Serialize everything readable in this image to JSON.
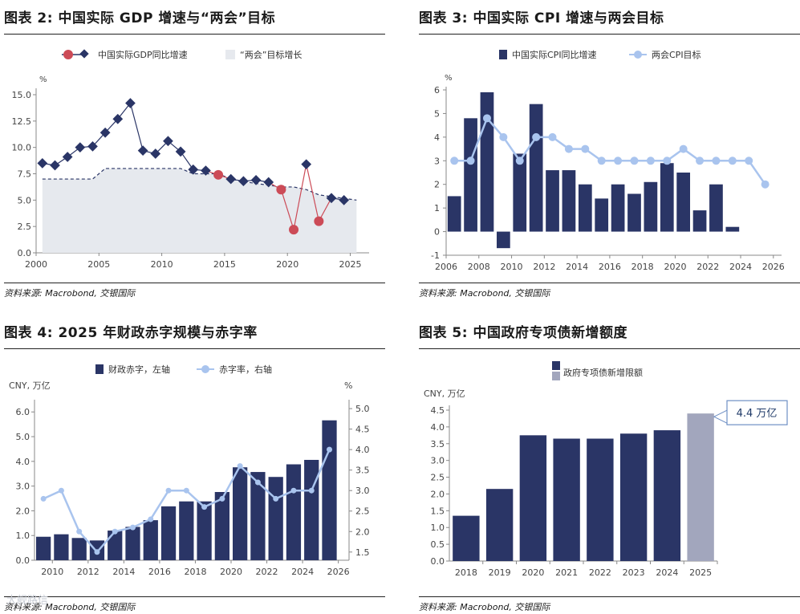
{
  "colors": {
    "navy": "#2a3566",
    "light_blue": "#a9c4ee",
    "red": "#cc4b57",
    "fill_gray": "#e6e9ee",
    "dash": "#2a3566",
    "gray_bar": "#a2a6bd",
    "callout_border": "#6e8fc4"
  },
  "watermark": "大舰路信",
  "chart_data": [
    {
      "type": "line",
      "title": "图表 2: 中国实际 GDP 增速与“两会”目标",
      "source": "资料来源: Macrobond, 交银国际",
      "unit": "%",
      "legend": [
        "中国实际GDP同比增速",
        "“两会”目标增长"
      ],
      "xlim": [
        2000,
        2026.5
      ],
      "ylim": [
        0,
        15
      ],
      "xticks": [
        "2000",
        "2005",
        "2010",
        "2015",
        "2020",
        "2025"
      ],
      "yticks": [
        "0.0",
        "2.5",
        "5.0",
        "7.5",
        "10.0",
        "12.5",
        "15.0"
      ],
      "gdp": {
        "x": [
          2000.5,
          2001.5,
          2002.5,
          2003.5,
          2004.5,
          2005.5,
          2006.5,
          2007.5,
          2008.5,
          2009.5,
          2010.5,
          2011.5,
          2012.5,
          2013.5,
          2014.5,
          2015.5,
          2016.5,
          2017.5,
          2018.5,
          2019.5,
          2020.5,
          2021.5,
          2022.5,
          2023.5,
          2024.5
        ],
        "y": [
          8.5,
          8.3,
          9.1,
          10.0,
          10.1,
          11.4,
          12.7,
          14.2,
          9.7,
          9.4,
          10.6,
          9.6,
          7.9,
          7.8,
          7.4,
          7.0,
          6.8,
          6.9,
          6.7,
          6.0,
          2.2,
          8.4,
          3.0,
          5.2,
          5.0
        ],
        "red_points_x": [
          2014.5,
          2019.5,
          2020.5,
          2022.5
        ]
      },
      "target": {
        "x": [
          2000.5,
          2004.5,
          2005.5,
          2011.5,
          2012.5,
          2014.5,
          2015.5,
          2016.5,
          2019.5,
          2020.5,
          2021.5,
          2022.5,
          2025.5
        ],
        "y": [
          7.0,
          7.0,
          8.0,
          8.0,
          7.5,
          7.5,
          7.0,
          6.75,
          6.25,
          6.25,
          6.0,
          5.5,
          5.0
        ]
      }
    },
    {
      "type": "bar+line",
      "title": "图表 3: 中国实际 CPI 增速与两会目标",
      "source": "资料来源: Macrobond, 交银国际",
      "unit": "%",
      "legend": [
        "中国实际CPI同比增速",
        "两会CPI目标"
      ],
      "xlim": [
        2006,
        2026.5
      ],
      "ylim": [
        -1,
        6
      ],
      "xticks": [
        "2006",
        "2008",
        "2010",
        "2012",
        "2014",
        "2016",
        "2018",
        "2020",
        "2022",
        "2024",
        "2026"
      ],
      "yticks": [
        "-1",
        "0",
        "1",
        "2",
        "3",
        "4",
        "5",
        "6"
      ],
      "cpi": {
        "x": [
          2006.5,
          2007.5,
          2008.5,
          2009.5,
          2010.5,
          2011.5,
          2012.5,
          2013.5,
          2014.5,
          2015.5,
          2016.5,
          2017.5,
          2018.5,
          2019.5,
          2020.5,
          2021.5,
          2022.5,
          2023.5
        ],
        "y": [
          1.5,
          4.8,
          5.9,
          -0.7,
          3.3,
          5.4,
          2.6,
          2.6,
          2.0,
          1.4,
          2.0,
          1.6,
          2.1,
          2.9,
          2.5,
          0.9,
          2.0,
          0.2
        ]
      },
      "target": {
        "x": [
          2006.5,
          2007.5,
          2008.5,
          2009.5,
          2010.5,
          2011.5,
          2012.5,
          2013.5,
          2014.5,
          2015.5,
          2016.5,
          2017.5,
          2018.5,
          2019.5,
          2020.5,
          2021.5,
          2022.5,
          2023.5,
          2024.5,
          2025.5
        ],
        "y": [
          3,
          3,
          4.8,
          4,
          3,
          4,
          4,
          3.5,
          3.5,
          3,
          3,
          3,
          3,
          3,
          3.5,
          3,
          3,
          3,
          3,
          2
        ]
      }
    },
    {
      "type": "bar+line",
      "title": "图表 4: 2025 年财政赤字规模与赤字率",
      "source": "资料来源: Macrobond, 交银国际",
      "legend": [
        "财政赤字，左轴",
        "赤字率，右轴"
      ],
      "y_left_label": "CNY, 万亿",
      "y_right_label": "%",
      "xlim": [
        2009,
        2026.6
      ],
      "ylim_left": [
        0,
        6.3
      ],
      "ylim_right": [
        1.3,
        5.1
      ],
      "xticks": [
        "2010",
        "2012",
        "2014",
        "2016",
        "2018",
        "2020",
        "2022",
        "2024",
        "2026"
      ],
      "yticks_left": [
        "0.0",
        "1.0",
        "2.0",
        "3.0",
        "4.0",
        "5.0",
        "6.0"
      ],
      "yticks_right": [
        "1.5",
        "2.0",
        "2.5",
        "3.0",
        "3.5",
        "4.0",
        "4.5",
        "5.0"
      ],
      "deficit": {
        "x": [
          2009.5,
          2010.5,
          2011.5,
          2012.5,
          2013.5,
          2014.5,
          2015.5,
          2016.5,
          2017.5,
          2018.5,
          2019.5,
          2020.5,
          2021.5,
          2022.5,
          2023.5,
          2024.5,
          2025.5
        ],
        "y": [
          0.95,
          1.05,
          0.9,
          0.8,
          1.2,
          1.35,
          1.62,
          2.18,
          2.38,
          2.38,
          2.76,
          3.76,
          3.57,
          3.37,
          3.88,
          4.06,
          5.66
        ]
      },
      "rate": {
        "x": [
          2009.5,
          2010.5,
          2011.5,
          2012.5,
          2013.5,
          2014.5,
          2015.5,
          2016.5,
          2017.5,
          2018.5,
          2019.5,
          2020.5,
          2021.5,
          2022.5,
          2023.5,
          2024.5,
          2025.5
        ],
        "y": [
          2.8,
          3.0,
          2.0,
          1.5,
          2.0,
          2.1,
          2.3,
          3.0,
          3.0,
          2.6,
          2.8,
          3.6,
          3.2,
          2.8,
          3.0,
          3.0,
          4.0
        ]
      }
    },
    {
      "type": "bar",
      "title": "图表 5: 中国政府专项债新增额度",
      "source": "资料来源: Macrobond, 交银国际",
      "legend_box": "",
      "legend": "政府专项债新增限额",
      "y_label": "CNY, 万亿",
      "ylim": [
        0,
        4.5
      ],
      "yticks": [
        "0.0",
        "0.5",
        "1.0",
        "1.5",
        "2.0",
        "2.5",
        "3.0",
        "3.5",
        "4.0",
        "4.5"
      ],
      "categories": [
        "2018",
        "2019",
        "2020",
        "2021",
        "2022",
        "2023",
        "2024",
        "2025"
      ],
      "values": [
        1.35,
        2.15,
        3.75,
        3.65,
        3.65,
        3.8,
        3.9,
        4.4
      ],
      "callout": "4.4 万亿"
    }
  ]
}
